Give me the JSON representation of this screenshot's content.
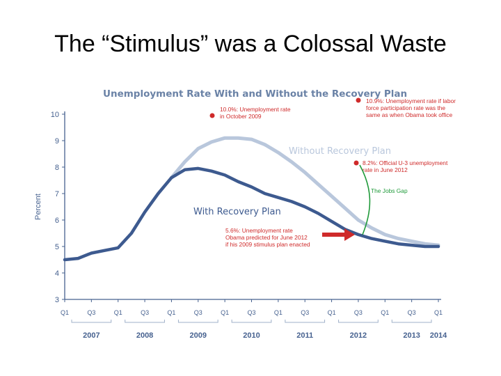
{
  "slide": {
    "title": "The “Stimulus” was a Colossal Waste"
  },
  "chart_data": {
    "type": "line",
    "title": "Unemployment Rate With and Without the Recovery Plan",
    "ylabel": "Percent",
    "ylim": [
      3,
      10
    ],
    "yticks": [
      3,
      4,
      5,
      6,
      7,
      8,
      9,
      10
    ],
    "x_quarters": [
      "Q1",
      "Q3",
      "Q1",
      "Q3",
      "Q1",
      "Q3",
      "Q1",
      "Q3",
      "Q1",
      "Q3",
      "Q1",
      "Q3",
      "Q1",
      "Q3",
      "Q1"
    ],
    "x_years": [
      "2007",
      "2008",
      "2009",
      "2010",
      "2011",
      "2012",
      "2013",
      "2014"
    ],
    "colors": {
      "with": "#3d5a8f",
      "without": "#b9c7dc",
      "annotation": "#cf2a2a",
      "jobs_gap": "#1f9a3a"
    },
    "series": [
      {
        "name": "Without Recovery Plan",
        "x": [
          2009.0,
          2009.25,
          2009.5,
          2009.75,
          2010.0,
          2010.25,
          2010.5,
          2010.75,
          2011.0,
          2011.25,
          2011.5,
          2011.75,
          2012.0,
          2012.25,
          2012.5,
          2012.75,
          2013.0,
          2013.25,
          2013.5,
          2013.75,
          2014.0
        ],
        "values": [
          7.6,
          8.2,
          8.7,
          8.95,
          9.1,
          9.1,
          9.05,
          8.85,
          8.55,
          8.2,
          7.8,
          7.35,
          6.9,
          6.45,
          6.0,
          5.7,
          5.45,
          5.3,
          5.2,
          5.1,
          5.05
        ]
      },
      {
        "name": "With Recovery Plan",
        "x": [
          2007.0,
          2007.25,
          2007.5,
          2007.75,
          2008.0,
          2008.25,
          2008.5,
          2008.75,
          2009.0,
          2009.25,
          2009.5,
          2009.75,
          2010.0,
          2010.25,
          2010.5,
          2010.75,
          2011.0,
          2011.25,
          2011.5,
          2011.75,
          2012.0,
          2012.25,
          2012.5,
          2012.75,
          2013.0,
          2013.25,
          2013.5,
          2013.75,
          2014.0
        ],
        "values": [
          4.5,
          4.55,
          4.75,
          4.85,
          4.95,
          5.5,
          6.3,
          7.0,
          7.6,
          7.9,
          7.95,
          7.85,
          7.7,
          7.45,
          7.25,
          7.0,
          6.85,
          6.7,
          6.5,
          6.25,
          5.95,
          5.65,
          5.45,
          5.3,
          5.2,
          5.1,
          5.05,
          5.0,
          5.0
        ]
      }
    ],
    "annotations": {
      "oct2009": [
        "10.0%: Unemployment rate",
        "in October 2009"
      ],
      "labor_force": [
        "10.9%: Unemployment rate if labor",
        "force participation rate was the",
        "same as when Obama took office"
      ],
      "u3": [
        "8.2%: Official U-3 unemployment",
        "rate in June 2012"
      ],
      "jobs_gap": "The Jobs Gap",
      "predicted": [
        "5.6%: Unemployment rate",
        "Obama predicted for June 2012",
        "if his 2009 stimulus plan enacted"
      ]
    }
  }
}
